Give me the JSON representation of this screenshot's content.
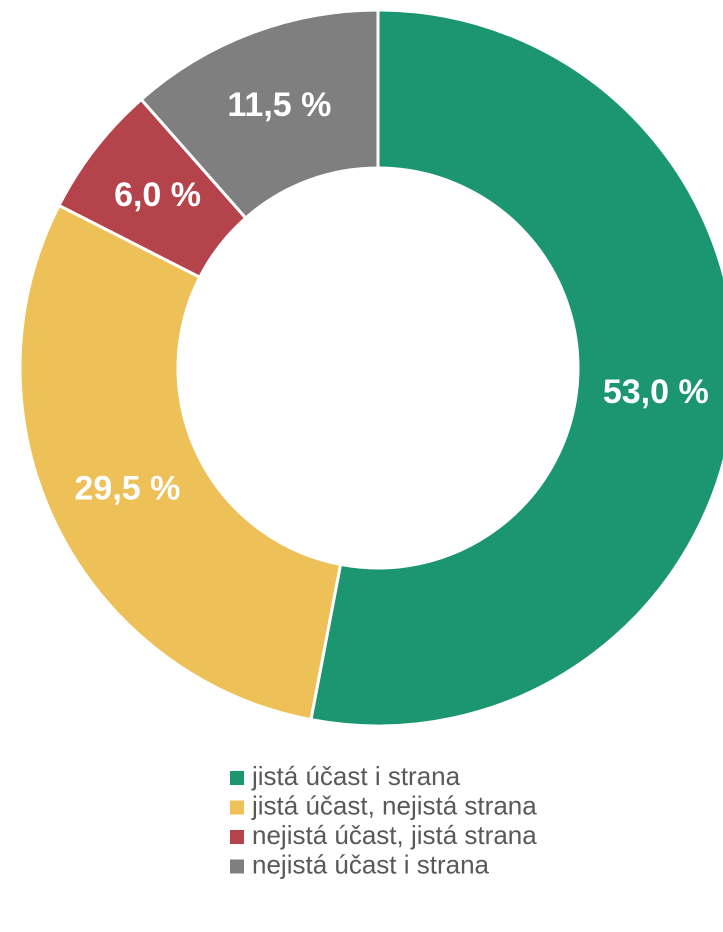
{
  "chart_data": {
    "type": "donut",
    "categories": [
      "jistá účast i strana",
      "jistá účast, nejistá strana",
      "nejistá účast, jistá strana",
      "nejistá účast i strana"
    ],
    "values": [
      53.0,
      29.5,
      6.0,
      11.5
    ],
    "value_labels": [
      "53,0 %",
      "29,5 %",
      "6,0 %",
      "11,5 %"
    ],
    "colors": [
      "#1b9670",
      "#edc058",
      "#b5434b",
      "#7f7f7f"
    ],
    "legend": "bottom"
  }
}
